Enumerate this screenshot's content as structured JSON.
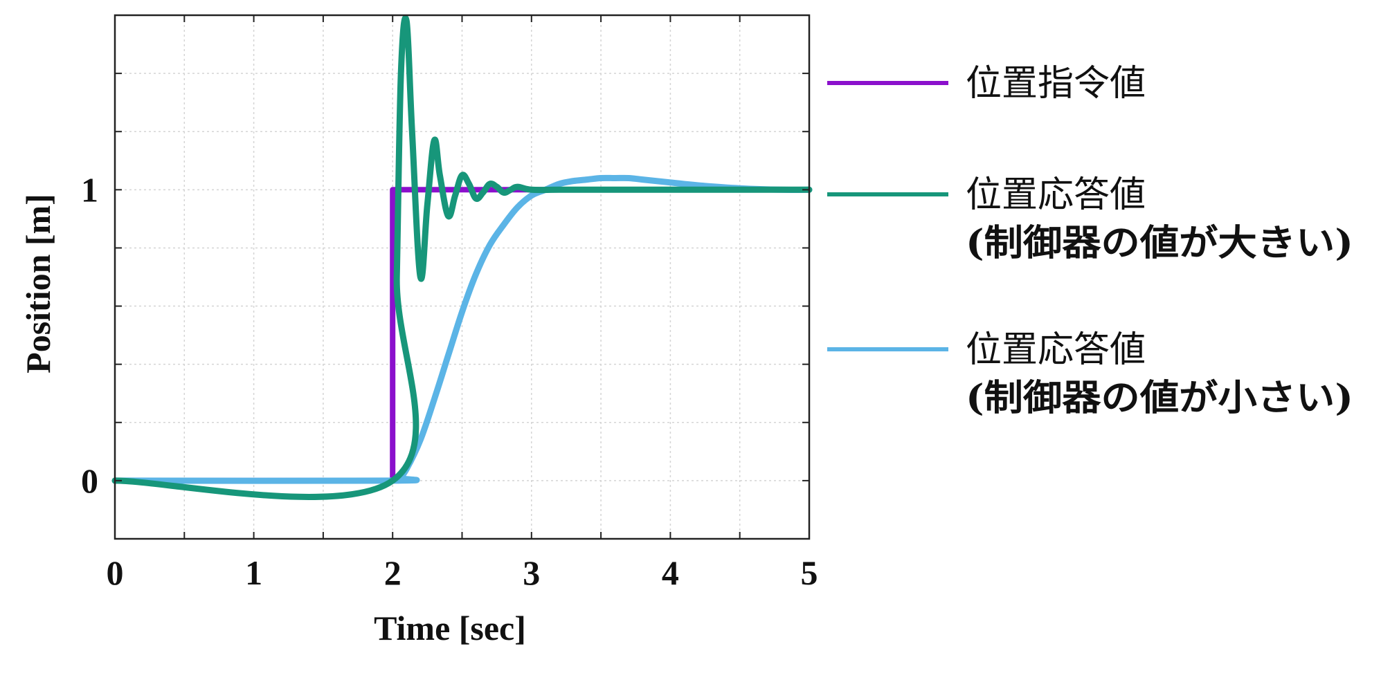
{
  "chart_data": {
    "type": "line",
    "xlabel": "Time [sec]",
    "ylabel": "Position [m]",
    "xlim": [
      0,
      5
    ],
    "ylim": [
      -0.2,
      1.6
    ],
    "x_ticks": [
      0,
      1,
      2,
      3,
      4,
      5
    ],
    "x_tick_labels": [
      "0",
      "1",
      "2",
      "3",
      "4",
      "5"
    ],
    "y_ticks": [
      0,
      1
    ],
    "y_tick_labels": [
      "0",
      "1"
    ],
    "grid": true,
    "legend_position": "right",
    "series": [
      {
        "name": "位置指令値",
        "color": "#8B10CC",
        "x": [
          0,
          2.0,
          2.0,
          5.0
        ],
        "y": [
          0,
          0,
          1,
          1
        ]
      },
      {
        "name": "位置応答値",
        "name_line2": "(制御器の値が大きい)",
        "color": "#17967A",
        "x": [
          0,
          2.0,
          2.03,
          2.06,
          2.1,
          2.14,
          2.2,
          2.25,
          2.3,
          2.34,
          2.4,
          2.45,
          2.5,
          2.55,
          2.6,
          2.65,
          2.7,
          2.75,
          2.8,
          2.85,
          2.9,
          3.0,
          3.2,
          3.5,
          4.0,
          5.0
        ],
        "y": [
          0,
          0,
          0.7,
          1.4,
          1.58,
          1.2,
          0.7,
          0.95,
          1.17,
          1.05,
          0.91,
          0.98,
          1.05,
          1.02,
          0.97,
          0.99,
          1.02,
          1.01,
          0.99,
          1.0,
          1.01,
          1.0,
          1.0,
          1.0,
          1.0,
          1.0
        ]
      },
      {
        "name": "位置応答値",
        "name_line2": "(制御器の値が小さい)",
        "color": "#5BB4E6",
        "x": [
          0,
          2.0,
          2.05,
          2.1,
          2.2,
          2.3,
          2.4,
          2.5,
          2.6,
          2.7,
          2.8,
          2.9,
          3.0,
          3.1,
          3.2,
          3.3,
          3.4,
          3.5,
          3.6,
          3.7,
          3.8,
          4.0,
          4.2,
          4.5,
          4.8,
          5.0
        ],
        "y": [
          0,
          0,
          0.01,
          0.04,
          0.14,
          0.28,
          0.43,
          0.58,
          0.71,
          0.81,
          0.88,
          0.94,
          0.98,
          1.0,
          1.02,
          1.03,
          1.035,
          1.04,
          1.04,
          1.04,
          1.035,
          1.025,
          1.015,
          1.005,
          1.0,
          1.0
        ]
      }
    ]
  }
}
